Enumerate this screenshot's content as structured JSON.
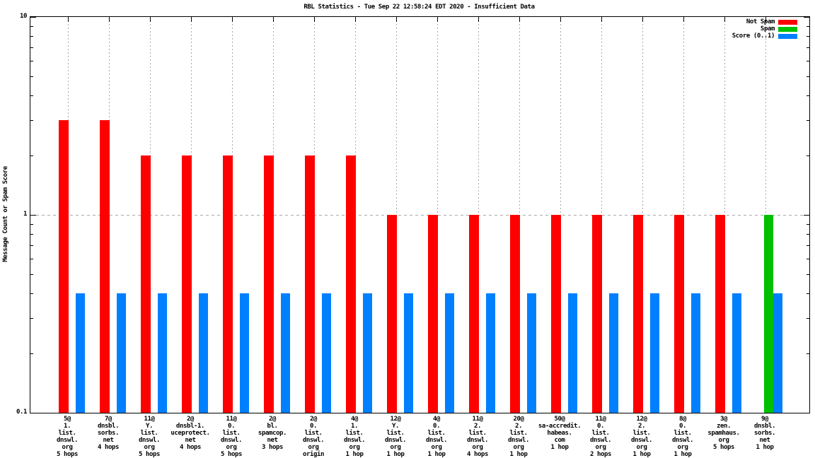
{
  "chart_data": {
    "type": "bar",
    "title": "RBL Statistics - Tue Sep 22 12:58:24 EDT 2020 - Insufficient Data",
    "ylabel": "Message Count or Spam Score",
    "yscale": "log",
    "ylim": [
      0.1,
      10
    ],
    "grid": {
      "h_dashed_at": 1,
      "v_dotted_at_each_group": true
    },
    "yticks": [
      {
        "value": 0.1,
        "label": "0.1"
      },
      {
        "value": 1,
        "label": "1"
      },
      {
        "value": 10,
        "label": "10"
      }
    ],
    "y_minor_ticks": [
      0.2,
      0.3,
      0.4,
      0.5,
      0.6,
      0.7,
      0.8,
      0.9,
      2,
      3,
      4,
      5,
      6,
      7,
      8,
      9
    ],
    "legend": {
      "position": "top-right",
      "items": [
        {
          "label": "Not Spam",
          "color": "#ff0000"
        },
        {
          "label": "Spam",
          "color": "#00c000"
        },
        {
          "label": "Score (0..1)",
          "color": "#0080ff"
        }
      ]
    },
    "series_names": [
      "Not Spam",
      "Spam",
      "Score (0..1)"
    ],
    "groups": [
      {
        "label_lines": [
          "5@",
          "1.",
          "list.",
          "dnswl.",
          "org",
          "5 hops"
        ],
        "not_spam": 3,
        "spam": 0,
        "score": 0.4
      },
      {
        "label_lines": [
          "7@",
          "dnsbl.",
          "sorbs.",
          "net",
          "4 hops"
        ],
        "not_spam": 3,
        "spam": 0,
        "score": 0.4
      },
      {
        "label_lines": [
          "11@",
          "Y.",
          "list.",
          "dnswl.",
          "org",
          "5 hops"
        ],
        "not_spam": 2,
        "spam": 0,
        "score": 0.4
      },
      {
        "label_lines": [
          "2@",
          "dnsbl-1.",
          "uceprotect.",
          "net",
          "4 hops"
        ],
        "not_spam": 2,
        "spam": 0,
        "score": 0.4
      },
      {
        "label_lines": [
          "11@",
          "0.",
          "list.",
          "dnswl.",
          "org",
          "5 hops"
        ],
        "not_spam": 2,
        "spam": 0,
        "score": 0.4
      },
      {
        "label_lines": [
          "2@",
          "bl.",
          "spamcop.",
          "net",
          "3 hops"
        ],
        "not_spam": 2,
        "spam": 0,
        "score": 0.4
      },
      {
        "label_lines": [
          "2@",
          "0.",
          "list.",
          "dnswl.",
          "org",
          "origin"
        ],
        "not_spam": 2,
        "spam": 0,
        "score": 0.4
      },
      {
        "label_lines": [
          "4@",
          "1.",
          "list.",
          "dnswl.",
          "org",
          "1 hop"
        ],
        "not_spam": 2,
        "spam": 0,
        "score": 0.4
      },
      {
        "label_lines": [
          "12@",
          "Y.",
          "list.",
          "dnswl.",
          "org",
          "1 hop"
        ],
        "not_spam": 1,
        "spam": 0,
        "score": 0.4
      },
      {
        "label_lines": [
          "4@",
          "0.",
          "list.",
          "dnswl.",
          "org",
          "1 hop"
        ],
        "not_spam": 1,
        "spam": 0,
        "score": 0.4
      },
      {
        "label_lines": [
          "11@",
          "2.",
          "list.",
          "dnswl.",
          "org",
          "4 hops"
        ],
        "not_spam": 1,
        "spam": 0,
        "score": 0.4
      },
      {
        "label_lines": [
          "20@",
          "2.",
          "list.",
          "dnswl.",
          "org",
          "1 hop"
        ],
        "not_spam": 1,
        "spam": 0,
        "score": 0.4
      },
      {
        "label_lines": [
          "50@",
          "sa-accredit.",
          "habeas.",
          "com",
          "1 hop"
        ],
        "not_spam": 1,
        "spam": 0,
        "score": 0.4
      },
      {
        "label_lines": [
          "11@",
          "0.",
          "list.",
          "dnswl.",
          "org",
          "2 hops"
        ],
        "not_spam": 1,
        "spam": 0,
        "score": 0.4
      },
      {
        "label_lines": [
          "12@",
          "2.",
          "list.",
          "dnswl.",
          "org",
          "1 hop"
        ],
        "not_spam": 1,
        "spam": 0,
        "score": 0.4
      },
      {
        "label_lines": [
          "8@",
          "0.",
          "list.",
          "dnswl.",
          "org",
          "1 hop"
        ],
        "not_spam": 1,
        "spam": 0,
        "score": 0.4
      },
      {
        "label_lines": [
          "3@",
          "zen.",
          "spamhaus.",
          "org",
          "5 hops"
        ],
        "not_spam": 1,
        "spam": 0,
        "score": 0.4
      },
      {
        "label_lines": [
          "9@",
          "dnsbl.",
          "sorbs.",
          "net",
          "1 hop"
        ],
        "not_spam": 0,
        "spam": 1,
        "score": 0.4
      }
    ],
    "colors": {
      "not_spam": "#ff0000",
      "spam": "#00c000",
      "score": "#0080ff",
      "grid": "#a9a9a9",
      "axis": "#000000",
      "background": "#ffffff"
    }
  }
}
